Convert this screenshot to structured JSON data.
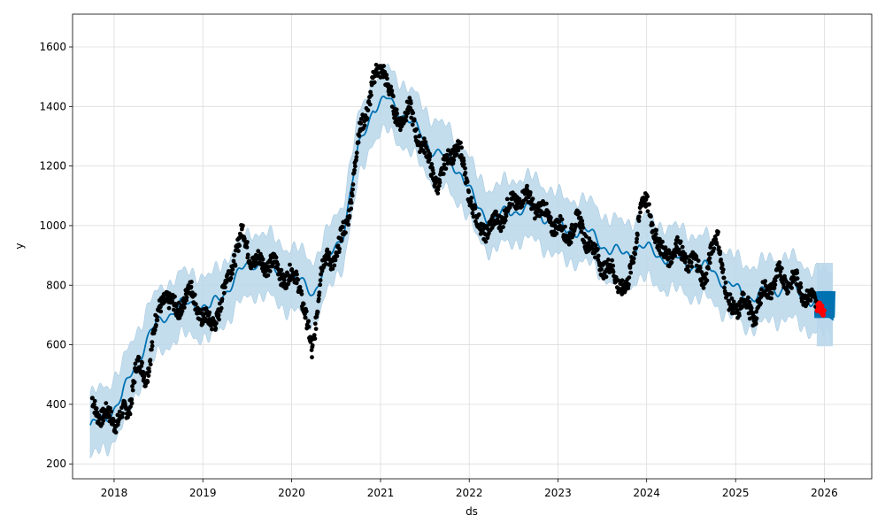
{
  "chart_data": {
    "type": "scatter",
    "title": "",
    "xlabel": "ds",
    "ylabel": "y",
    "xlim": [
      "2017-07-14",
      "2026-07-15"
    ],
    "ylim": [
      150,
      1710
    ],
    "x_ticks": [
      "2018",
      "2019",
      "2020",
      "2021",
      "2022",
      "2023",
      "2024",
      "2025",
      "2026"
    ],
    "y_ticks": [
      200,
      400,
      600,
      800,
      1000,
      1200,
      1400,
      1600
    ],
    "grid": true,
    "colors": {
      "observed": "#000000",
      "forecast_line": "#0072B2",
      "uncertainty_band": "#b9d7ea",
      "recent_points": "#ff0000"
    },
    "observed_anchors": [
      [
        "2017-10-01",
        405
      ],
      [
        "2017-11-15",
        360
      ],
      [
        "2018-01-01",
        350
      ],
      [
        "2018-03-01",
        370
      ],
      [
        "2018-04-01",
        540
      ],
      [
        "2018-05-10",
        480
      ],
      [
        "2018-06-15",
        650
      ],
      [
        "2018-08-01",
        780
      ],
      [
        "2018-09-15",
        700
      ],
      [
        "2018-11-01",
        790
      ],
      [
        "2018-12-15",
        720
      ],
      [
        "2019-02-01",
        660
      ],
      [
        "2019-03-15",
        730
      ],
      [
        "2019-05-01",
        880
      ],
      [
        "2019-06-15",
        970
      ],
      [
        "2019-08-01",
        870
      ],
      [
        "2019-10-01",
        880
      ],
      [
        "2019-12-01",
        830
      ],
      [
        "2020-02-01",
        820
      ],
      [
        "2020-03-01",
        680
      ],
      [
        "2020-03-25",
        560
      ],
      [
        "2020-05-01",
        860
      ],
      [
        "2020-07-01",
        900
      ],
      [
        "2020-08-15",
        1000
      ],
      [
        "2020-10-01",
        1280
      ],
      [
        "2020-12-01",
        1480
      ],
      [
        "2021-01-15",
        1540
      ],
      [
        "2021-03-01",
        1360
      ],
      [
        "2021-05-01",
        1380
      ],
      [
        "2021-07-01",
        1250
      ],
      [
        "2021-09-01",
        1130
      ],
      [
        "2021-10-15",
        1260
      ],
      [
        "2021-12-01",
        1230
      ],
      [
        "2022-02-01",
        1000
      ],
      [
        "2022-04-01",
        990
      ],
      [
        "2022-06-01",
        1050
      ],
      [
        "2022-08-01",
        1100
      ],
      [
        "2022-10-01",
        1070
      ],
      [
        "2022-12-01",
        1020
      ],
      [
        "2023-02-01",
        970
      ],
      [
        "2023-04-01",
        1010
      ],
      [
        "2023-06-01",
        900
      ],
      [
        "2023-08-01",
        850
      ],
      [
        "2023-10-15",
        780
      ],
      [
        "2023-12-10",
        1080
      ],
      [
        "2024-01-15",
        1050
      ],
      [
        "2024-03-01",
        900
      ],
      [
        "2024-05-01",
        920
      ],
      [
        "2024-07-01",
        880
      ],
      [
        "2024-09-01",
        830
      ],
      [
        "2024-10-20",
        980
      ],
      [
        "2024-12-01",
        720
      ],
      [
        "2025-02-01",
        740
      ],
      [
        "2025-03-20",
        700
      ],
      [
        "2025-05-01",
        780
      ],
      [
        "2025-07-01",
        830
      ],
      [
        "2025-09-01",
        810
      ],
      [
        "2025-11-01",
        760
      ],
      [
        "2025-12-01",
        720
      ]
    ],
    "trend": [
      [
        "2017-09-25",
        320
      ],
      [
        "2017-12-01",
        360
      ],
      [
        "2018-02-01",
        420
      ],
      [
        "2018-04-01",
        540
      ],
      [
        "2018-06-01",
        640
      ],
      [
        "2018-08-01",
        700
      ],
      [
        "2018-10-01",
        730
      ],
      [
        "2018-12-01",
        740
      ],
      [
        "2019-02-01",
        720
      ],
      [
        "2019-04-01",
        780
      ],
      [
        "2019-06-01",
        840
      ],
      [
        "2019-08-01",
        880
      ],
      [
        "2019-10-01",
        860
      ],
      [
        "2019-12-01",
        830
      ],
      [
        "2020-02-01",
        810
      ],
      [
        "2020-04-01",
        780
      ],
      [
        "2020-06-01",
        880
      ],
      [
        "2020-08-01",
        980
      ],
      [
        "2020-10-01",
        1250
      ],
      [
        "2020-12-01",
        1400
      ],
      [
        "2021-02-01",
        1420
      ],
      [
        "2021-04-01",
        1380
      ],
      [
        "2021-06-01",
        1320
      ],
      [
        "2021-08-01",
        1260
      ],
      [
        "2021-10-01",
        1220
      ],
      [
        "2021-12-01",
        1180
      ],
      [
        "2022-02-01",
        1060
      ],
      [
        "2022-04-01",
        1020
      ],
      [
        "2022-06-01",
        1040
      ],
      [
        "2022-08-01",
        1060
      ],
      [
        "2022-10-01",
        1050
      ],
      [
        "2022-12-01",
        1020
      ],
      [
        "2023-02-01",
        980
      ],
      [
        "2023-04-01",
        990
      ],
      [
        "2023-06-01",
        960
      ],
      [
        "2023-08-01",
        920
      ],
      [
        "2023-10-01",
        900
      ],
      [
        "2023-12-01",
        930
      ],
      [
        "2024-02-01",
        910
      ],
      [
        "2024-04-01",
        890
      ],
      [
        "2024-06-01",
        880
      ],
      [
        "2024-08-01",
        860
      ],
      [
        "2024-10-01",
        850
      ],
      [
        "2024-12-01",
        800
      ],
      [
        "2025-02-01",
        770
      ],
      [
        "2025-04-01",
        760
      ],
      [
        "2025-06-01",
        790
      ],
      [
        "2025-08-01",
        790
      ],
      [
        "2025-10-01",
        770
      ],
      [
        "2025-12-01",
        740
      ],
      [
        "2026-02-05",
        735
      ]
    ],
    "band_halfwidth": 105,
    "forecast": {
      "start": "2025-12-01",
      "end": "2026-02-05",
      "low": 690,
      "high": 780,
      "band_low": 595,
      "band_high": 875
    },
    "recent_points": [
      [
        "2025-12-03",
        715
      ],
      [
        "2025-12-06",
        735
      ],
      [
        "2025-12-09",
        725
      ],
      [
        "2025-12-12",
        740
      ],
      [
        "2025-12-15",
        720
      ],
      [
        "2025-12-18",
        710
      ],
      [
        "2025-12-21",
        730
      ],
      [
        "2025-12-24",
        705
      ],
      [
        "2025-12-27",
        700
      ],
      [
        "2025-12-30",
        715
      ]
    ]
  }
}
